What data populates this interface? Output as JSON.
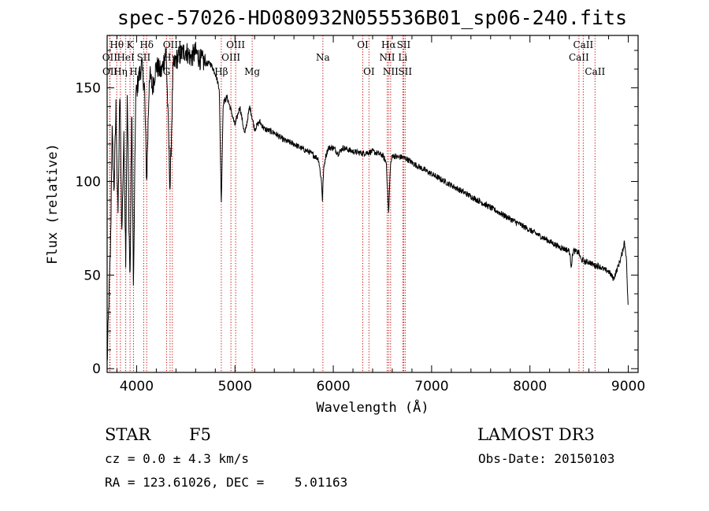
{
  "title": "spec-57026-HD080932N055536B01_sp06-240.fits",
  "footer": {
    "object_type": "STAR",
    "subclass": "F5",
    "survey": "LAMOST DR3",
    "cz": "cz = 0.0 ± 4.3 km/s",
    "obs_date": "Obs-Date: 20150103",
    "radec": "RA = 123.61026, DEC =    5.01163"
  },
  "chart_data": {
    "type": "line",
    "title": "spec-57026-HD080932N055536B01_sp06-240.fits",
    "xlabel": "Wavelength (Å)",
    "ylabel": "Flux (relative)",
    "xlim": [
      3700,
      9100
    ],
    "ylim": [
      -2,
      178
    ],
    "xticks": [
      4000,
      5000,
      6000,
      7000,
      8000,
      9000
    ],
    "yticks": [
      0,
      50,
      100,
      150
    ],
    "series": [
      {
        "name": "flux",
        "x": [
          3700,
          3720,
          3735,
          3750,
          3770,
          3790,
          3810,
          3830,
          3850,
          3870,
          3889,
          3905,
          3920,
          3933,
          3950,
          3968,
          3990,
          4020,
          4050,
          4080,
          4102,
          4130,
          4160,
          4200,
          4250,
          4300,
          4340,
          4370,
          4400,
          4450,
          4500,
          4550,
          4600,
          4650,
          4700,
          4750,
          4800,
          4840,
          4861,
          4880,
          4920,
          4960,
          5000,
          5050,
          5100,
          5150,
          5200,
          5250,
          5300,
          5400,
          5500,
          5600,
          5700,
          5750,
          5800,
          5850,
          5880,
          5890,
          5900,
          5920,
          5950,
          6000,
          6050,
          6100,
          6200,
          6300,
          6400,
          6500,
          6540,
          6563,
          6580,
          6600,
          6650,
          6700,
          6750,
          6800,
          6900,
          7000,
          7100,
          7200,
          7300,
          7400,
          7500,
          7600,
          7700,
          7800,
          7900,
          8000,
          8100,
          8200,
          8300,
          8400,
          8420,
          8440,
          8498,
          8520,
          8542,
          8560,
          8600,
          8662,
          8700,
          8750,
          8800,
          8850,
          8900,
          8940,
          8960,
          8980,
          8990,
          9000
        ],
        "y": [
          2,
          40,
          65,
          128,
          95,
          140,
          80,
          150,
          72,
          125,
          60,
          148,
          85,
          45,
          140,
          40,
          145,
          155,
          162,
          150,
          100,
          158,
          150,
          162,
          158,
          170,
          95,
          160,
          165,
          168,
          170,
          166,
          169,
          165,
          163,
          163,
          158,
          150,
          88,
          142,
          145,
          138,
          130,
          140,
          125,
          140,
          128,
          132,
          128,
          126,
          122,
          120,
          117,
          116,
          114,
          112,
          100,
          90,
          105,
          113,
          118,
          118,
          115,
          118,
          116,
          115,
          116,
          114,
          110,
          82,
          108,
          114,
          113,
          113,
          112,
          110,
          107,
          104,
          101,
          98,
          95,
          92,
          89,
          86,
          83,
          80,
          77,
          74,
          71,
          68,
          65,
          63,
          55,
          63,
          62,
          58,
          58,
          57,
          57,
          55,
          55,
          53,
          52,
          48,
          55,
          62,
          68,
          60,
          45,
          30
        ]
      }
    ],
    "lines": [
      {
        "name": "Hθ",
        "wave": 3798,
        "row": 1
      },
      {
        "name": "OII",
        "wave": 3727,
        "row": 2
      },
      {
        "name": "OII",
        "wave": 3729,
        "row": 3
      },
      {
        "name": "Hη",
        "wave": 3835,
        "row": 3
      },
      {
        "name": "HeI",
        "wave": 3889,
        "row": 2
      },
      {
        "name": "K",
        "wave": 3933,
        "row": 1
      },
      {
        "name": "H",
        "wave": 3968,
        "row": 3
      },
      {
        "name": "SII",
        "wave": 4072,
        "row": 2
      },
      {
        "name": "Hδ",
        "wave": 4102,
        "row": 1
      },
      {
        "name": "G",
        "wave": 4304,
        "row": 3
      },
      {
        "name": "Hγ",
        "wave": 4340,
        "row": 2
      },
      {
        "name": "OIII",
        "wave": 4363,
        "row": 1
      },
      {
        "name": "Hβ",
        "wave": 4861,
        "row": 3
      },
      {
        "name": "OIII",
        "wave": 4959,
        "row": 2
      },
      {
        "name": "OIII",
        "wave": 5007,
        "row": 1
      },
      {
        "name": "Mg",
        "wave": 5175,
        "row": 3
      },
      {
        "name": "Na",
        "wave": 5894,
        "row": 2
      },
      {
        "name": "OI",
        "wave": 6300,
        "row": 1
      },
      {
        "name": "OI",
        "wave": 6363,
        "row": 3
      },
      {
        "name": "NII",
        "wave": 6548,
        "row": 2
      },
      {
        "name": "Hα",
        "wave": 6563,
        "row": 1
      },
      {
        "name": "NII",
        "wave": 6583,
        "row": 3
      },
      {
        "name": "Li",
        "wave": 6707,
        "row": 2
      },
      {
        "name": "SII",
        "wave": 6716,
        "row": 1
      },
      {
        "name": "SII",
        "wave": 6731,
        "row": 3
      },
      {
        "name": "CaII",
        "wave": 8498,
        "row": 2
      },
      {
        "name": "CaII",
        "wave": 8542,
        "row": 1
      },
      {
        "name": "CaII",
        "wave": 8662,
        "row": 3
      }
    ]
  }
}
